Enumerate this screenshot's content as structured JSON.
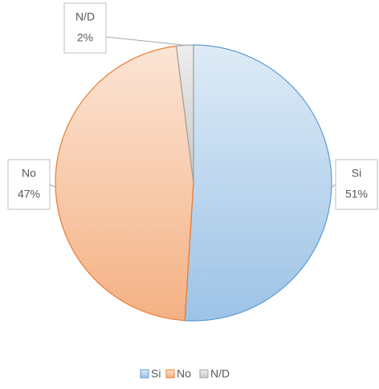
{
  "chart_data": {
    "type": "pie",
    "categories": [
      "Si",
      "No",
      "N/D"
    ],
    "values": [
      51,
      47,
      2
    ],
    "value_labels": [
      "51%",
      "47%",
      "2%"
    ],
    "colors": [
      "#5b9bd5",
      "#ed7d31",
      "#a5a5a5"
    ],
    "legend": "bottom"
  }
}
